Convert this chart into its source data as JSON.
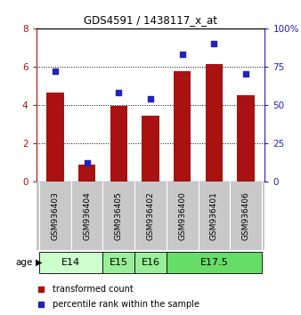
{
  "title": "GDS4591 / 1438117_x_at",
  "samples": [
    "GSM936403",
    "GSM936404",
    "GSM936405",
    "GSM936402",
    "GSM936400",
    "GSM936401",
    "GSM936406"
  ],
  "transformed_counts": [
    4.65,
    0.85,
    3.95,
    3.45,
    5.75,
    6.15,
    4.5
  ],
  "percentile_ranks": [
    72,
    12,
    58,
    54,
    83,
    90,
    70
  ],
  "bar_color": "#aa1111",
  "dot_color": "#2222bb",
  "ylim_left": [
    0,
    8
  ],
  "ylim_right": [
    0,
    100
  ],
  "yticks_left": [
    0,
    2,
    4,
    6,
    8
  ],
  "yticks_right": [
    0,
    25,
    50,
    75,
    100
  ],
  "ytick_labels_right": [
    "0",
    "25",
    "50",
    "75",
    "100%"
  ],
  "grid_lines": [
    2.0,
    4.0,
    6.0
  ],
  "age_groups": [
    {
      "label": "E14",
      "span": [
        0,
        2
      ],
      "color": "#ccffcc"
    },
    {
      "label": "E15",
      "span": [
        2,
        3
      ],
      "color": "#99ee99"
    },
    {
      "label": "E16",
      "span": [
        3,
        4
      ],
      "color": "#99ee99"
    },
    {
      "label": "E17.5",
      "span": [
        4,
        7
      ],
      "color": "#66dd66"
    }
  ],
  "legend_bar_label": "transformed count",
  "legend_dot_label": "percentile rank within the sample",
  "age_label": "age",
  "background_color": "#ffffff",
  "sample_area_color": "#c8c8c8"
}
